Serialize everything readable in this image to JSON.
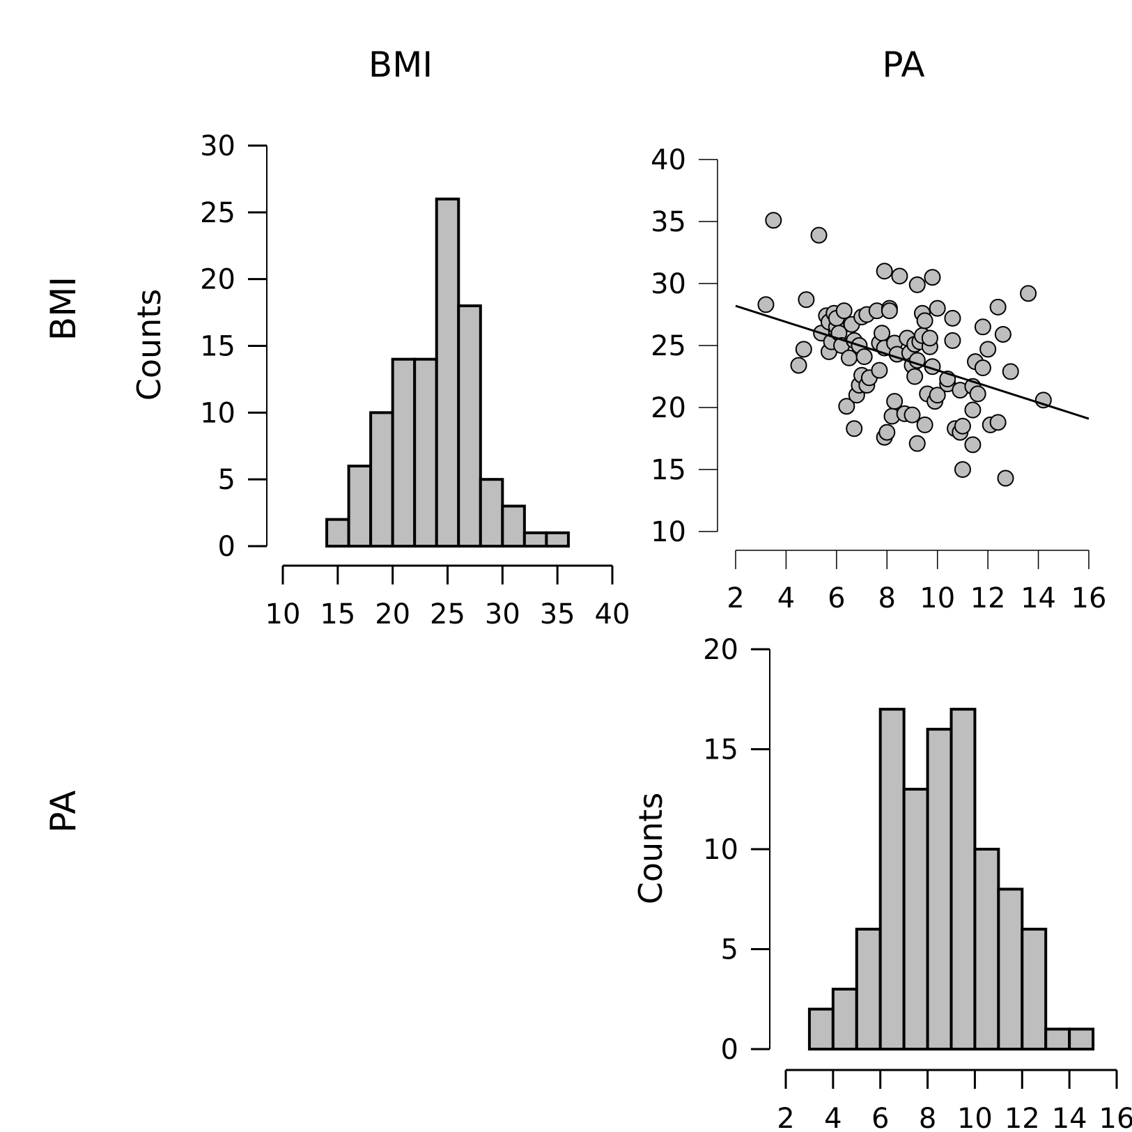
{
  "headers": {
    "col_bmi": "BMI",
    "col_pa": "PA",
    "row_bmi": "BMI",
    "row_pa": "PA"
  },
  "colors": {
    "bar_fill": "#bebebe",
    "point_fill": "#bebebe",
    "stroke": "#000000"
  },
  "chart_data": [
    {
      "id": "bmi_hist",
      "type": "bar",
      "variable": "BMI",
      "ylabel": "Counts",
      "xlim": [
        10,
        40
      ],
      "ylim": [
        0,
        30
      ],
      "xticks": [
        10,
        15,
        20,
        25,
        30,
        35,
        40
      ],
      "yticks": [
        0,
        5,
        10,
        15,
        20,
        25,
        30
      ],
      "bins": [
        {
          "x0": 14,
          "x1": 16,
          "count": 2
        },
        {
          "x0": 16,
          "x1": 18,
          "count": 6
        },
        {
          "x0": 18,
          "x1": 20,
          "count": 10
        },
        {
          "x0": 20,
          "x1": 22,
          "count": 14
        },
        {
          "x0": 22,
          "x1": 24,
          "count": 14
        },
        {
          "x0": 24,
          "x1": 26,
          "count": 26
        },
        {
          "x0": 26,
          "x1": 28,
          "count": 18
        },
        {
          "x0": 28,
          "x1": 30,
          "count": 5
        },
        {
          "x0": 30,
          "x1": 32,
          "count": 3
        },
        {
          "x0": 32,
          "x1": 34,
          "count": 1
        },
        {
          "x0": 34,
          "x1": 36,
          "count": 1
        }
      ]
    },
    {
      "id": "scatter_pa_bmi",
      "type": "scatter",
      "x_variable": "PA",
      "y_variable": "BMI",
      "xlim": [
        2,
        16
      ],
      "ylim": [
        10,
        40
      ],
      "xticks": [
        2,
        4,
        6,
        8,
        10,
        12,
        14,
        16
      ],
      "yticks": [
        10,
        15,
        20,
        25,
        30,
        35,
        40
      ],
      "regression_line": {
        "x": [
          2,
          16
        ],
        "y": [
          28.2,
          19.1
        ]
      },
      "points": [
        [
          3.2,
          28.3
        ],
        [
          3.5,
          35.1
        ],
        [
          4.5,
          23.4
        ],
        [
          4.7,
          24.7
        ],
        [
          4.8,
          28.7
        ],
        [
          5.3,
          33.9
        ],
        [
          5.4,
          26.0
        ],
        [
          5.6,
          27.4
        ],
        [
          5.7,
          24.5
        ],
        [
          5.7,
          26.9
        ],
        [
          5.8,
          25.3
        ],
        [
          5.9,
          27.6
        ],
        [
          6.0,
          26.5
        ],
        [
          6.0,
          27.2
        ],
        [
          6.1,
          26.0
        ],
        [
          6.2,
          25.0
        ],
        [
          6.3,
          27.8
        ],
        [
          6.4,
          20.1
        ],
        [
          6.5,
          24.0
        ],
        [
          6.6,
          26.7
        ],
        [
          6.7,
          25.4
        ],
        [
          6.7,
          18.3
        ],
        [
          6.8,
          21.0
        ],
        [
          6.9,
          25.0
        ],
        [
          6.9,
          21.8
        ],
        [
          7.0,
          22.6
        ],
        [
          7.0,
          27.3
        ],
        [
          7.1,
          24.1
        ],
        [
          7.2,
          27.5
        ],
        [
          7.2,
          21.8
        ],
        [
          7.3,
          22.4
        ],
        [
          7.6,
          27.8
        ],
        [
          7.7,
          23.0
        ],
        [
          7.7,
          25.2
        ],
        [
          7.8,
          26.0
        ],
        [
          7.9,
          24.8
        ],
        [
          7.9,
          31.0
        ],
        [
          7.9,
          17.6
        ],
        [
          8.0,
          18.0
        ],
        [
          8.1,
          28.0
        ],
        [
          8.1,
          27.8
        ],
        [
          8.2,
          19.3
        ],
        [
          8.3,
          20.5
        ],
        [
          8.3,
          25.2
        ],
        [
          8.4,
          24.3
        ],
        [
          8.5,
          30.6
        ],
        [
          8.7,
          19.5
        ],
        [
          8.8,
          25.6
        ],
        [
          8.9,
          24.4
        ],
        [
          9.0,
          23.4
        ],
        [
          9.0,
          19.4
        ],
        [
          9.1,
          22.5
        ],
        [
          9.1,
          25.1
        ],
        [
          9.2,
          29.9
        ],
        [
          9.2,
          17.1
        ],
        [
          9.2,
          23.8
        ],
        [
          9.3,
          25.3
        ],
        [
          9.4,
          27.6
        ],
        [
          9.4,
          25.8
        ],
        [
          9.5,
          18.6
        ],
        [
          9.5,
          27.0
        ],
        [
          9.6,
          21.1
        ],
        [
          9.7,
          24.9
        ],
        [
          9.7,
          25.6
        ],
        [
          9.8,
          23.3
        ],
        [
          9.8,
          30.5
        ],
        [
          9.9,
          20.5
        ],
        [
          10.0,
          28.0
        ],
        [
          10.0,
          21.0
        ],
        [
          10.4,
          21.9
        ],
        [
          10.4,
          22.3
        ],
        [
          10.6,
          27.2
        ],
        [
          10.6,
          25.4
        ],
        [
          10.7,
          18.3
        ],
        [
          10.9,
          21.4
        ],
        [
          10.9,
          18.0
        ],
        [
          11.0,
          15.0
        ],
        [
          11.0,
          18.5
        ],
        [
          11.4,
          21.7
        ],
        [
          11.4,
          19.8
        ],
        [
          11.4,
          17.0
        ],
        [
          11.5,
          23.7
        ],
        [
          11.6,
          21.1
        ],
        [
          11.8,
          26.5
        ],
        [
          11.8,
          23.2
        ],
        [
          12.0,
          24.7
        ],
        [
          12.1,
          18.6
        ],
        [
          12.4,
          28.1
        ],
        [
          12.4,
          18.8
        ],
        [
          12.6,
          25.9
        ],
        [
          12.7,
          14.3
        ],
        [
          12.9,
          22.9
        ],
        [
          13.6,
          29.2
        ],
        [
          14.2,
          20.6
        ]
      ]
    },
    {
      "id": "pa_hist",
      "type": "bar",
      "variable": "PA",
      "ylabel": "Counts",
      "xlim": [
        2,
        16
      ],
      "ylim": [
        0,
        20
      ],
      "xticks": [
        2,
        4,
        6,
        8,
        10,
        12,
        14,
        16
      ],
      "yticks": [
        0,
        5,
        10,
        15,
        20
      ],
      "bins": [
        {
          "x0": 3,
          "x1": 4,
          "count": 2
        },
        {
          "x0": 4,
          "x1": 5,
          "count": 3
        },
        {
          "x0": 5,
          "x1": 6,
          "count": 6
        },
        {
          "x0": 6,
          "x1": 7,
          "count": 17
        },
        {
          "x0": 7,
          "x1": 8,
          "count": 13
        },
        {
          "x0": 8,
          "x1": 9,
          "count": 16
        },
        {
          "x0": 9,
          "x1": 10,
          "count": 17
        },
        {
          "x0": 10,
          "x1": 11,
          "count": 10
        },
        {
          "x0": 11,
          "x1": 12,
          "count": 8
        },
        {
          "x0": 12,
          "x1": 13,
          "count": 6
        },
        {
          "x0": 13,
          "x1": 14,
          "count": 1
        },
        {
          "x0": 14,
          "x1": 15,
          "count": 1
        }
      ]
    }
  ]
}
